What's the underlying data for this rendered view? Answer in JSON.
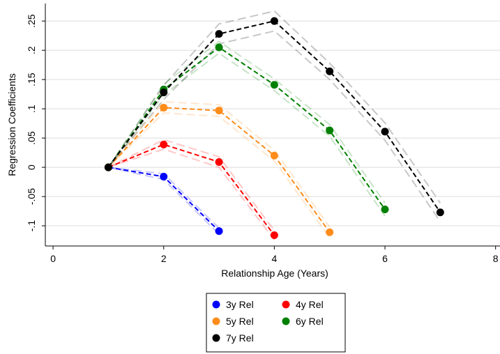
{
  "chart_data": {
    "type": "line",
    "x_label": "Relationship Age (Years)",
    "y_label": "Regression Coefficients",
    "xlim": [
      -0.14,
      8.08
    ],
    "ylim": [
      -0.1345,
      0.28
    ],
    "xticks": [
      0,
      2,
      4,
      6,
      8
    ],
    "yticks": [
      {
        "value": 0.25,
        "label": ".25"
      },
      {
        "value": 0.2,
        "label": ".2"
      },
      {
        "value": 0.15,
        "label": ".15"
      },
      {
        "value": 0.1,
        "label": ".1"
      },
      {
        "value": 0.05,
        "label": ".05"
      },
      {
        "value": 0,
        "label": "0"
      },
      {
        "value": -0.05,
        "label": "-.05"
      },
      {
        "value": -0.1,
        "label": "-.1"
      }
    ],
    "grid": true,
    "legend": "bottom",
    "series": [
      {
        "name": "3y Rel",
        "color": "#0000ff",
        "x": [
          1,
          2,
          3
        ],
        "values": [
          0,
          -0.016,
          -0.109
        ],
        "lower": [
          0,
          -0.021,
          -0.114
        ],
        "upper": [
          0,
          -0.011,
          -0.104
        ]
      },
      {
        "name": "4y Rel",
        "color": "#ff0000",
        "x": [
          1,
          2,
          3,
          4
        ],
        "values": [
          0,
          0.039,
          0.009,
          -0.116
        ],
        "lower": [
          0,
          0.031,
          0.0,
          -0.124
        ],
        "upper": [
          0,
          0.047,
          0.018,
          -0.108
        ]
      },
      {
        "name": "5y Rel",
        "color": "#ff8c1a",
        "x": [
          1,
          2,
          3,
          4,
          5
        ],
        "values": [
          0,
          0.102,
          0.097,
          0.02,
          -0.111
        ],
        "lower": [
          0,
          0.093,
          0.087,
          0.011,
          -0.12
        ],
        "upper": [
          0,
          0.112,
          0.107,
          0.029,
          -0.102
        ]
      },
      {
        "name": "6y Rel",
        "color": "#008000",
        "x": [
          1,
          2,
          3,
          4,
          5,
          6
        ],
        "values": [
          0,
          0.133,
          0.205,
          0.141,
          0.063,
          -0.072
        ],
        "lower": [
          0,
          0.124,
          0.195,
          0.131,
          0.053,
          -0.083
        ],
        "upper": [
          0,
          0.142,
          0.215,
          0.151,
          0.073,
          -0.061
        ]
      },
      {
        "name": "7y Rel",
        "color": "#000000",
        "x": [
          1,
          2,
          3,
          4,
          5,
          6,
          7
        ],
        "values": [
          0,
          0.128,
          0.228,
          0.25,
          0.164,
          0.061,
          -0.077
        ],
        "lower": [
          0,
          0.116,
          0.211,
          0.233,
          0.15,
          0.046,
          -0.093
        ],
        "upper": [
          0,
          0.14,
          0.245,
          0.267,
          0.178,
          0.076,
          -0.061
        ]
      }
    ]
  }
}
